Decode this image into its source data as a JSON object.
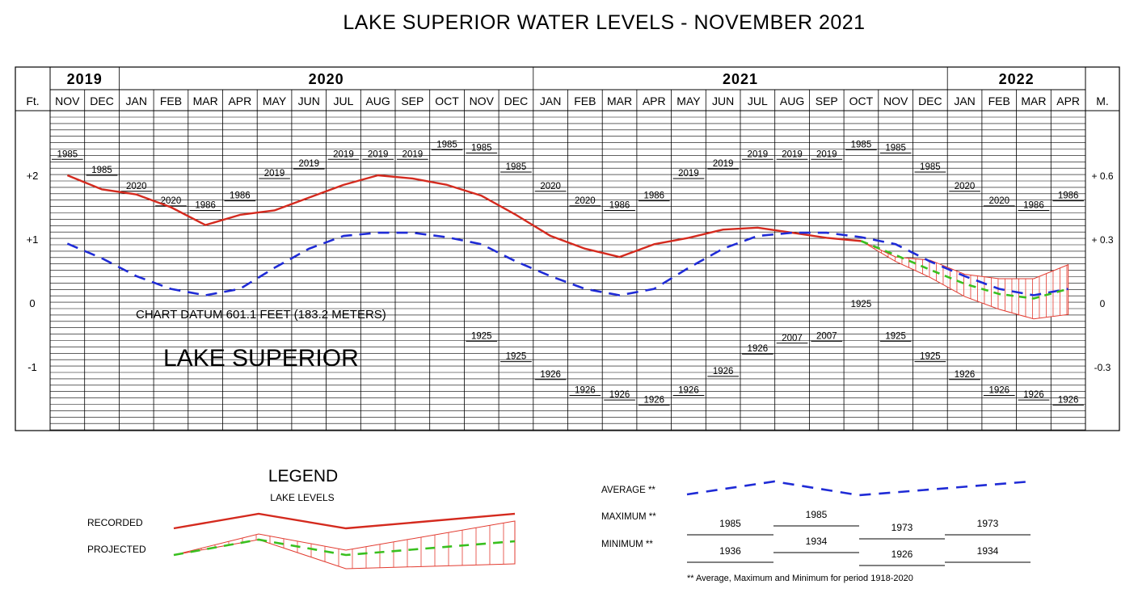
{
  "chart_data": {
    "type": "line",
    "title": "LAKE SUPERIOR WATER LEVELS - NOVEMBER 2021",
    "lake_name": "LAKE SUPERIOR",
    "datum_note": "CHART DATUM  601.1 FEET (183.2 METERS)",
    "y_unit_left": "Ft.",
    "y_unit_right": "M.",
    "y_ticks_ft": [
      {
        "value": 2,
        "label": "+2"
      },
      {
        "value": 1,
        "label": "+1"
      },
      {
        "value": 0,
        "label": "0"
      },
      {
        "value": -1,
        "label": "-1"
      }
    ],
    "y_ticks_m": [
      {
        "value": 2,
        "label": "+ 0.6"
      },
      {
        "value": 1,
        "label": "+ 0.3"
      },
      {
        "value": 0,
        "label": "0"
      },
      {
        "value": -1,
        "label": "-0.3"
      }
    ],
    "ylim": [
      -1.95,
      2.9
    ],
    "years": [
      {
        "label": "2019",
        "start": 0,
        "count": 2
      },
      {
        "label": "2020",
        "start": 2,
        "count": 12
      },
      {
        "label": "2021",
        "start": 14,
        "count": 12
      },
      {
        "label": "2022",
        "start": 26,
        "count": 4
      }
    ],
    "months": [
      "NOV",
      "DEC",
      "JAN",
      "FEB",
      "MAR",
      "APR",
      "MAY",
      "JUN",
      "JUL",
      "AUG",
      "SEP",
      "OCT",
      "NOV",
      "DEC",
      "JAN",
      "FEB",
      "MAR",
      "APR",
      "MAY",
      "JUN",
      "JUL",
      "AUG",
      "SEP",
      "OCT",
      "NOV",
      "DEC",
      "JAN",
      "FEB",
      "MAR",
      "APR"
    ],
    "maximum": {
      "values": [
        2.25,
        2.0,
        1.75,
        1.52,
        1.45,
        1.6,
        1.95,
        2.1,
        2.25,
        2.25,
        2.25,
        2.4,
        2.35,
        2.05,
        1.75,
        1.52,
        1.45,
        1.6,
        1.95,
        2.1,
        2.25,
        2.25,
        2.25,
        2.4,
        2.35,
        2.05,
        1.75,
        1.52,
        1.45,
        1.6
      ],
      "years": [
        "1985",
        "1985",
        "2020",
        "2020",
        "1986",
        "1986",
        "2019",
        "2019",
        "2019",
        "2019",
        "2019",
        "1985",
        "1985",
        "1985",
        "2020",
        "2020",
        "1986",
        "1986",
        "2019",
        "2019",
        "2019",
        "2019",
        "2019",
        "1985",
        "1985",
        "1985",
        "2020",
        "2020",
        "1986",
        "1986"
      ]
    },
    "minimum": {
      "values": [
        null,
        null,
        null,
        null,
        null,
        null,
        null,
        null,
        null,
        null,
        null,
        null,
        -0.6,
        -0.92,
        -1.2,
        -1.45,
        -1.52,
        -1.6,
        -1.45,
        -1.15,
        -0.8,
        -0.63,
        -0.6,
        null,
        -0.6,
        -0.92,
        -1.2,
        -1.45,
        -1.52,
        -1.6
      ],
      "years": [
        null,
        null,
        null,
        null,
        null,
        null,
        null,
        null,
        null,
        null,
        null,
        null,
        "1925",
        "1925",
        "1926",
        "1926",
        "1926",
        "1926",
        "1926",
        "1926",
        "1926",
        "2007",
        "2007",
        "1925",
        "1925",
        "1925",
        "1926",
        "1926",
        "1926",
        "1926"
      ],
      "labels_only": [
        {
          "index": 23,
          "year": "1925",
          "value": -0.1
        }
      ]
    },
    "series": [
      {
        "name": "RECORDED",
        "color": "#d42a1e",
        "style": "solid",
        "x": [
          0,
          1,
          2,
          3,
          4,
          5,
          6,
          7,
          8,
          9,
          10,
          11,
          12,
          13,
          14,
          15,
          16,
          17,
          18,
          19,
          20,
          21,
          22,
          23
        ],
        "values": [
          2.0,
          1.78,
          1.7,
          1.5,
          1.22,
          1.38,
          1.45,
          1.65,
          1.85,
          2.0,
          1.95,
          1.85,
          1.68,
          1.38,
          1.05,
          0.85,
          0.72,
          0.92,
          1.02,
          1.15,
          1.18,
          1.1,
          1.02,
          0.97
        ]
      },
      {
        "name": "AVERAGE",
        "color": "#1f2bd6",
        "style": "dashed",
        "x": [
          0,
          1,
          2,
          3,
          4,
          5,
          6,
          7,
          8,
          9,
          10,
          11,
          12,
          13,
          14,
          15,
          16,
          17,
          18,
          19,
          20,
          21,
          22,
          23,
          24,
          25,
          26,
          27,
          28,
          29
        ],
        "values": [
          0.93,
          0.7,
          0.42,
          0.22,
          0.12,
          0.22,
          0.55,
          0.85,
          1.05,
          1.1,
          1.1,
          1.03,
          0.92,
          0.65,
          0.42,
          0.22,
          0.12,
          0.22,
          0.55,
          0.85,
          1.05,
          1.1,
          1.1,
          1.03,
          0.92,
          0.65,
          0.42,
          0.22,
          0.12,
          0.22
        ]
      },
      {
        "name": "PROJECTED",
        "color": "#39c01f",
        "style": "dashed",
        "x": [
          23,
          24,
          25,
          26,
          27,
          28,
          29
        ],
        "values": [
          0.97,
          0.75,
          0.52,
          0.3,
          0.14,
          0.07,
          0.22
        ]
      }
    ],
    "projected_band": {
      "x": [
        23,
        24,
        25,
        26,
        27,
        28,
        29
      ],
      "upper": [
        0.97,
        0.72,
        0.67,
        0.45,
        0.38,
        0.38,
        0.6
      ],
      "lower": [
        0.97,
        0.65,
        0.4,
        0.1,
        -0.1,
        -0.25,
        -0.18
      ]
    }
  },
  "legend": {
    "title": "LEGEND",
    "subtitle": "LAKE LEVELS",
    "recorded_label": "RECORDED",
    "projected_label": "PROJECTED",
    "average_label": "AVERAGE **",
    "maximum_label": "MAXIMUM **",
    "minimum_label": "MINIMUM **",
    "max_years": [
      "1985",
      "1985",
      "1973",
      "1973"
    ],
    "min_years": [
      "1936",
      "1934",
      "1926",
      "1934"
    ],
    "footnote": "** Average, Maximum and Minimum for period 1918-2020"
  }
}
